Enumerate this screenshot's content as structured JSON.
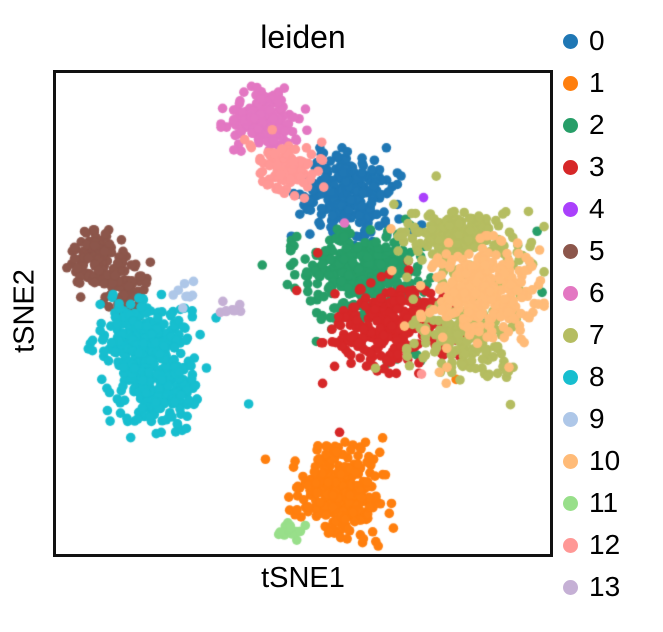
{
  "chart_data": {
    "type": "scatter",
    "title": "leiden",
    "xlabel": "tSNE1",
    "ylabel": "tSNE2",
    "ticks_visible": false,
    "grid": false,
    "legend_position": "right-outside",
    "point_radius_px": 4.8,
    "seed": 5,
    "clusters": [
      {
        "label": "0",
        "color": "#1f77b4",
        "components": [
          {
            "cx": 0.586,
            "cy": 0.253,
            "sx": 0.042,
            "sy": 0.039,
            "n": 230
          },
          {
            "cx": 0.604,
            "cy": 0.298,
            "sx": 0.075,
            "sy": 0.046,
            "n": 14
          }
        ],
        "outliers": [
          [
            0.74,
            0.316
          ],
          [
            0.514,
            0.335
          ],
          [
            0.654,
            0.318
          ]
        ]
      },
      {
        "label": "1",
        "color": "#ff7f0e",
        "components": [
          {
            "cx": 0.578,
            "cy": 0.871,
            "sx": 0.042,
            "sy": 0.045,
            "n": 300
          },
          {
            "cx": 0.564,
            "cy": 0.862,
            "sx": 0.055,
            "sy": 0.05,
            "n": 18
          }
        ],
        "outliers": [
          [
            0.484,
            0.807
          ],
          [
            0.424,
            0.803
          ],
          [
            0.81,
            0.637
          ],
          [
            0.488,
            0.908
          ]
        ]
      },
      {
        "label": "2",
        "color": "#279e68",
        "components": [
          {
            "cx": 0.61,
            "cy": 0.411,
            "sx": 0.054,
            "sy": 0.039,
            "n": 300
          },
          {
            "cx": 0.63,
            "cy": 0.452,
            "sx": 0.085,
            "sy": 0.075,
            "n": 70
          }
        ],
        "outliers": [
          [
            0.984,
            0.456
          ],
          [
            0.96,
            0.394
          ],
          [
            0.974,
            0.329
          ],
          [
            0.85,
            0.349
          ],
          [
            0.872,
            0.519
          ],
          [
            0.708,
            0.304
          ]
        ]
      },
      {
        "label": "3",
        "color": "#d62728",
        "components": [
          {
            "cx": 0.682,
            "cy": 0.517,
            "sx": 0.058,
            "sy": 0.043,
            "n": 260
          },
          {
            "cx": 0.674,
            "cy": 0.524,
            "sx": 0.09,
            "sy": 0.06,
            "n": 40
          }
        ],
        "outliers": [
          [
            0.574,
            0.747
          ],
          [
            0.864,
            0.333
          ],
          [
            0.53,
            0.374
          ]
        ]
      },
      {
        "label": "4",
        "color": "#aa40fc",
        "components": [],
        "outliers": [
          [
            0.744,
            0.259
          ]
        ]
      },
      {
        "label": "5",
        "color": "#8c564b",
        "components": [
          {
            "cx": 0.088,
            "cy": 0.386,
            "sx": 0.03,
            "sy": 0.027,
            "n": 110
          },
          {
            "cx": 0.136,
            "cy": 0.458,
            "sx": 0.022,
            "sy": 0.029,
            "n": 70
          },
          {
            "cx": 0.104,
            "cy": 0.421,
            "sx": 0.045,
            "sy": 0.045,
            "n": 10
          }
        ],
        "outliers": [
          [
            0.022,
            0.405
          ],
          [
            0.048,
            0.437
          ],
          [
            0.05,
            0.466
          ]
        ]
      },
      {
        "label": "6",
        "color": "#e377c2",
        "components": [
          {
            "cx": 0.41,
            "cy": 0.09,
            "sx": 0.038,
            "sy": 0.029,
            "n": 130
          },
          {
            "cx": 0.448,
            "cy": 0.127,
            "sx": 0.024,
            "sy": 0.02,
            "n": 25
          }
        ],
        "outliers": [
          [
            0.508,
            0.119
          ],
          [
            0.584,
            0.312
          ],
          [
            0.36,
            0.16
          ]
        ]
      },
      {
        "label": "7",
        "color": "#b5bd61",
        "components": [
          {
            "cx": 0.82,
            "cy": 0.343,
            "sx": 0.06,
            "sy": 0.029,
            "n": 150
          },
          {
            "cx": 0.83,
            "cy": 0.548,
            "sx": 0.048,
            "sy": 0.037,
            "n": 150
          },
          {
            "cx": 0.824,
            "cy": 0.452,
            "sx": 0.075,
            "sy": 0.095,
            "n": 55
          }
        ],
        "outliers": [
          [
            0.684,
            0.273
          ],
          [
            0.72,
            0.292
          ]
        ]
      },
      {
        "label": "8",
        "color": "#17becf",
        "components": [
          {
            "cx": 0.17,
            "cy": 0.558,
            "sx": 0.044,
            "sy": 0.039,
            "n": 230
          },
          {
            "cx": 0.204,
            "cy": 0.663,
            "sx": 0.04,
            "sy": 0.041,
            "n": 190
          },
          {
            "cx": 0.194,
            "cy": 0.606,
            "sx": 0.065,
            "sy": 0.065,
            "n": 25
          }
        ],
        "outliers": [
          [
            0.324,
            0.509
          ],
          [
            0.26,
            0.489
          ],
          [
            0.258,
            0.528
          ],
          [
            0.264,
            0.739
          ],
          [
            0.39,
            0.688
          ]
        ]
      },
      {
        "label": "9",
        "color": "#aec7e8",
        "components": [
          {
            "cx": 0.258,
            "cy": 0.462,
            "sx": 0.013,
            "sy": 0.012,
            "n": 9
          }
        ],
        "outliers": []
      },
      {
        "label": "10",
        "color": "#ffbb78",
        "components": [
          {
            "cx": 0.868,
            "cy": 0.446,
            "sx": 0.052,
            "sy": 0.043,
            "n": 260
          },
          {
            "cx": 0.864,
            "cy": 0.462,
            "sx": 0.07,
            "sy": 0.06,
            "n": 35
          }
        ],
        "outliers": [
          [
            0.68,
            0.411
          ],
          [
            0.776,
            0.622
          ],
          [
            0.79,
            0.645
          ],
          [
            0.678,
            0.324
          ]
        ]
      },
      {
        "label": "11",
        "color": "#98df8a",
        "components": [
          {
            "cx": 0.472,
            "cy": 0.944,
            "sx": 0.014,
            "sy": 0.011,
            "n": 16
          }
        ],
        "outliers": []
      },
      {
        "label": "12",
        "color": "#ff9896",
        "components": [
          {
            "cx": 0.462,
            "cy": 0.193,
            "sx": 0.032,
            "sy": 0.031,
            "n": 110
          }
        ],
        "outliers": [
          [
            0.74,
            0.626
          ]
        ]
      },
      {
        "label": "13",
        "color": "#c5b0d5",
        "components": [
          {
            "cx": 0.35,
            "cy": 0.499,
            "sx": 0.014,
            "sy": 0.011,
            "n": 9
          }
        ],
        "outliers": []
      }
    ]
  }
}
